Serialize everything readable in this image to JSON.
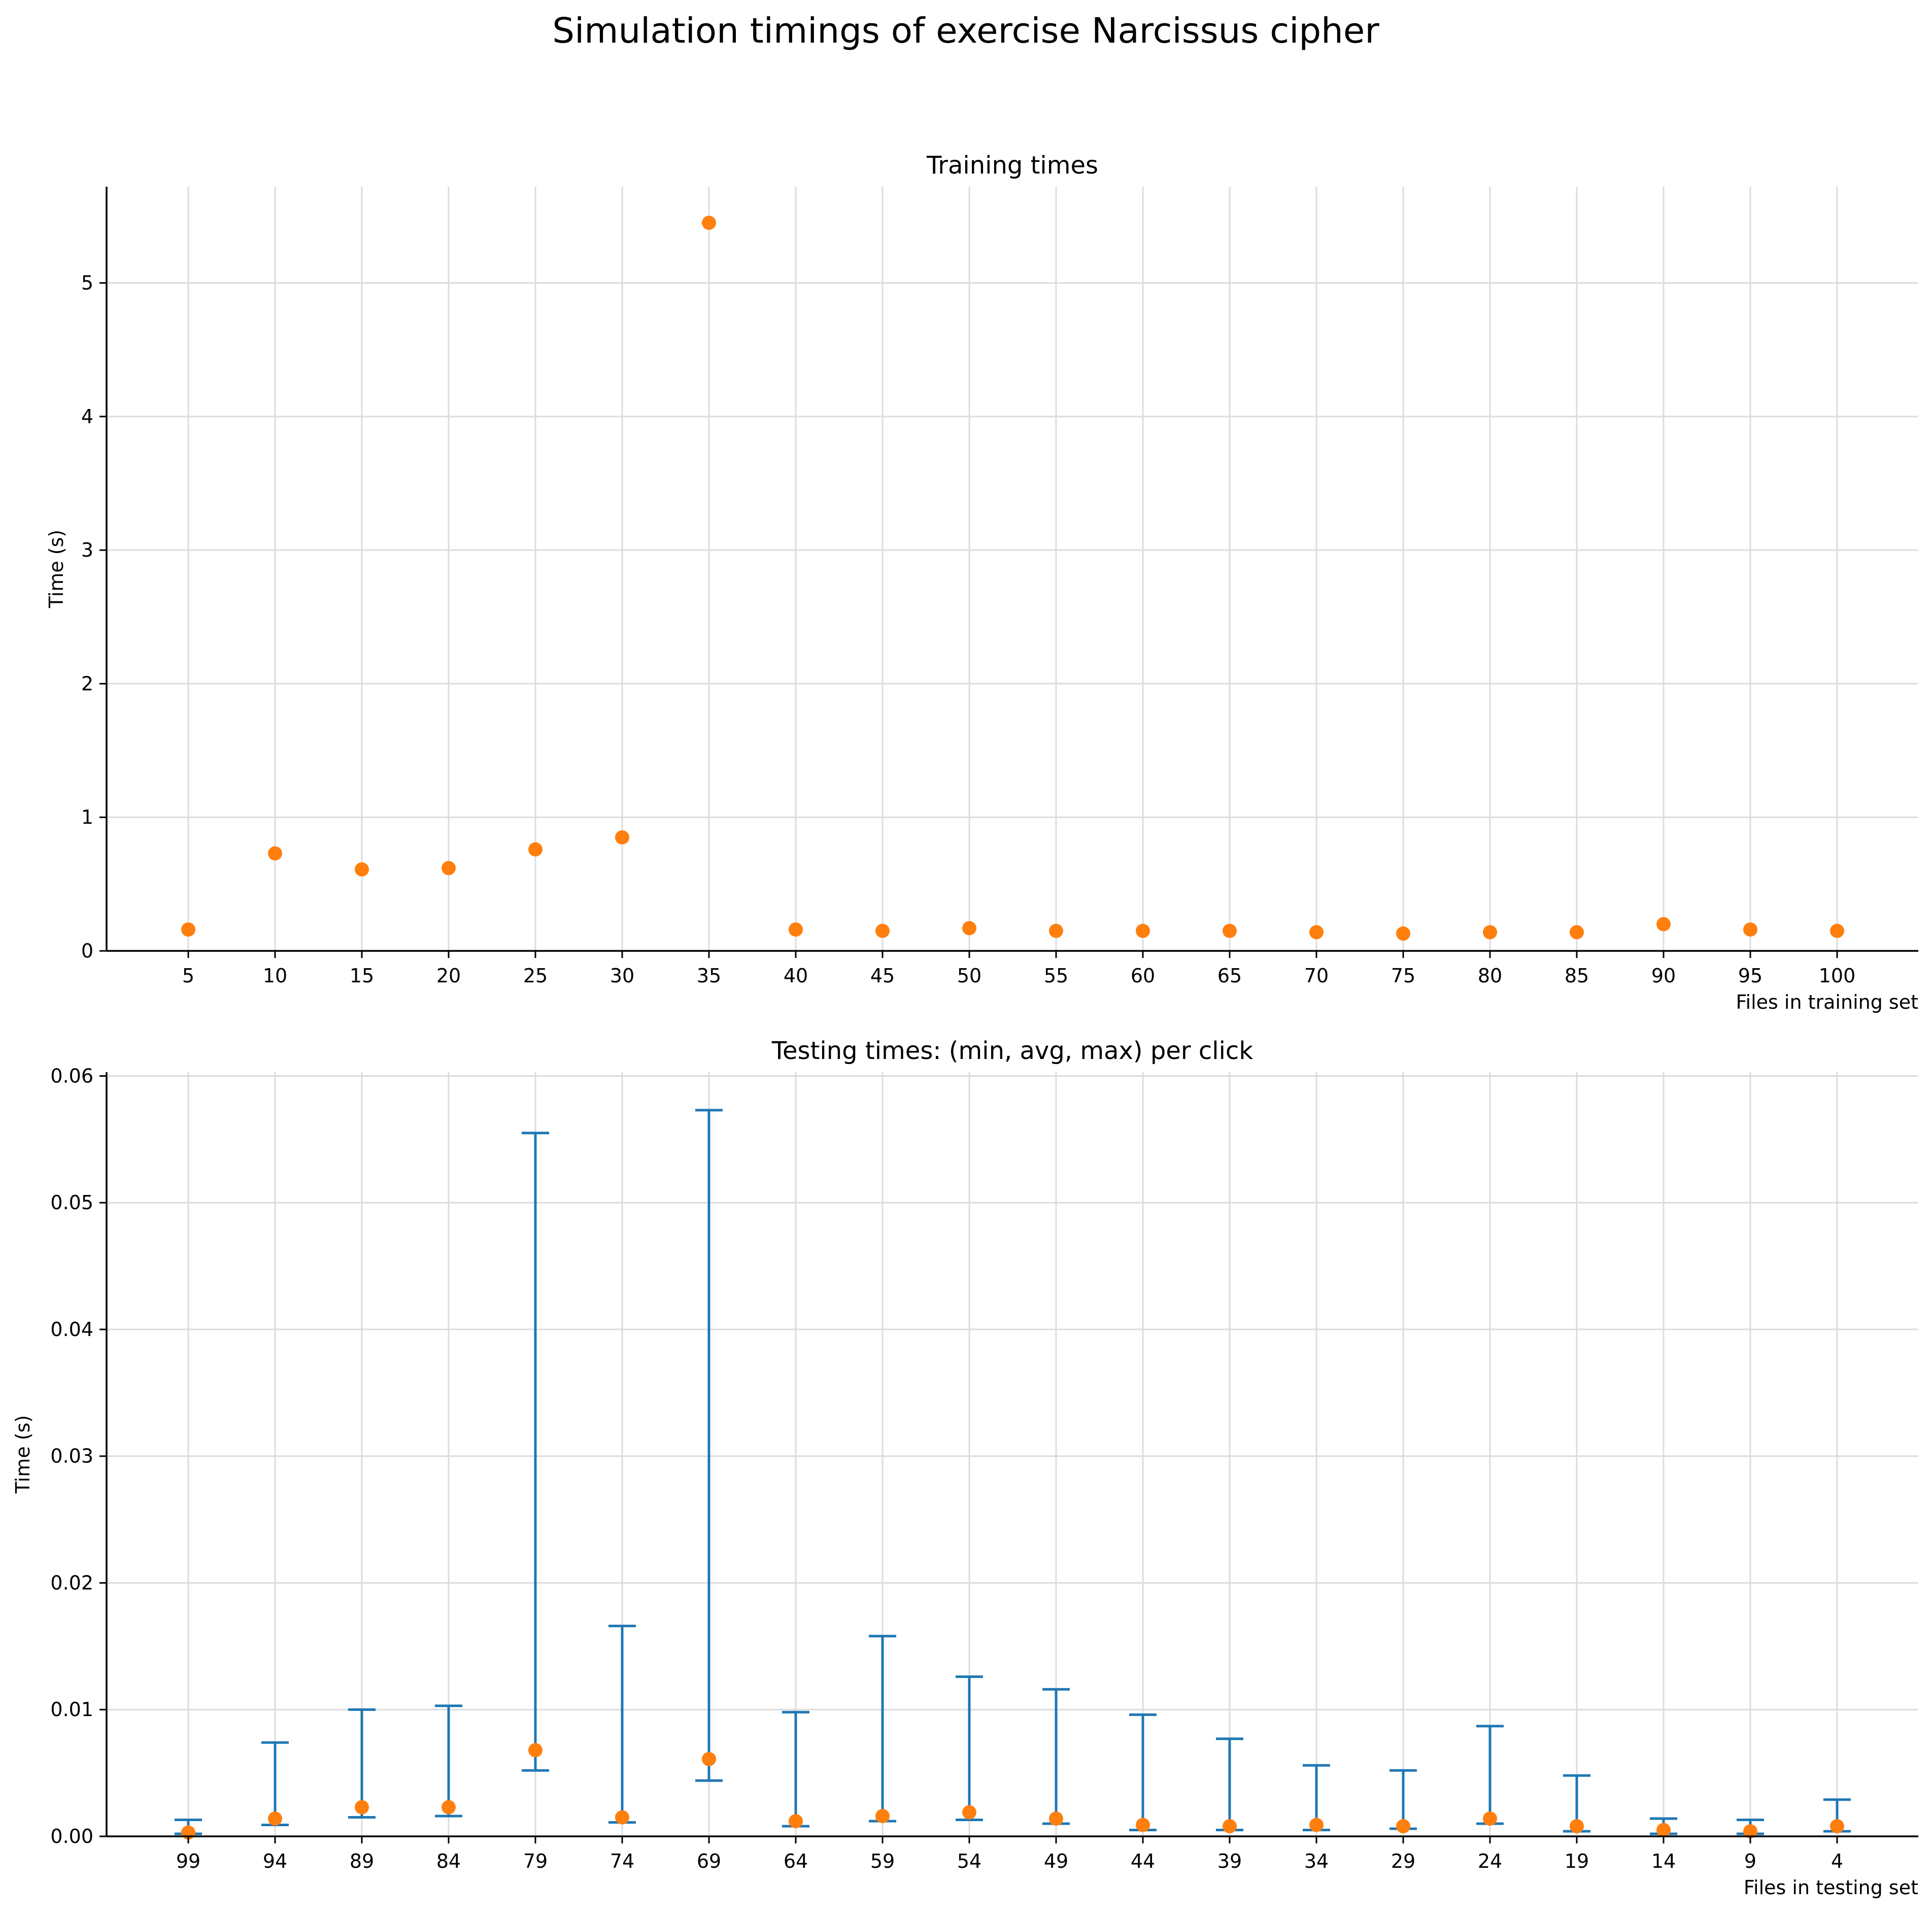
{
  "figure_title": "Simulation timings of exercise Narcissus cipher",
  "colors": {
    "marker": "#ff7f0e",
    "errorbar": "#1f77b4",
    "grid": "#dcdcdc"
  },
  "chart_data": [
    {
      "type": "scatter",
      "title": "Training times",
      "xlabel": "Files in training set",
      "ylabel": "Time (s)",
      "ylim": [
        0,
        5.72
      ],
      "yticks": [
        0,
        1,
        2,
        3,
        4,
        5
      ],
      "ytick_labels": [
        "0",
        "1",
        "2",
        "3",
        "4",
        "5"
      ],
      "grid": true,
      "categories": [
        "5",
        "10",
        "15",
        "20",
        "25",
        "30",
        "35",
        "40",
        "45",
        "50",
        "55",
        "60",
        "65",
        "70",
        "75",
        "80",
        "85",
        "90",
        "95",
        "100"
      ],
      "series": [
        {
          "values": [
            0.16,
            0.73,
            0.61,
            0.62,
            0.76,
            0.85,
            5.45,
            0.16,
            0.15,
            0.17,
            0.15,
            0.15,
            0.15,
            0.14,
            0.13,
            0.14,
            0.14,
            0.2,
            0.16,
            0.15
          ]
        }
      ]
    },
    {
      "type": "errorbar",
      "title": "Testing times: (min, avg, max) per click",
      "xlabel": "Files in testing set",
      "ylabel": "Time (s)",
      "ylim": [
        0,
        0.0603
      ],
      "yticks": [
        0,
        0.01,
        0.02,
        0.03,
        0.04,
        0.05,
        0.06
      ],
      "ytick_labels": [
        "0.00",
        "0.01",
        "0.02",
        "0.03",
        "0.04",
        "0.05",
        "0.06"
      ],
      "grid": true,
      "categories": [
        "99",
        "94",
        "89",
        "84",
        "79",
        "74",
        "69",
        "64",
        "59",
        "54",
        "49",
        "44",
        "39",
        "34",
        "29",
        "24",
        "19",
        "14",
        "9",
        "4"
      ],
      "series": [
        {
          "min": [
            0.0002,
            0.0009,
            0.0015,
            0.0016,
            0.0052,
            0.0011,
            0.0044,
            0.0008,
            0.0012,
            0.0013,
            0.001,
            0.0005,
            0.0005,
            0.0005,
            0.0006,
            0.001,
            0.0004,
            0.0002,
            0.0002,
            0.0004
          ],
          "avg": [
            0.0003,
            0.0014,
            0.0023,
            0.0023,
            0.0068,
            0.0015,
            0.0061,
            0.0012,
            0.0016,
            0.0019,
            0.0014,
            0.0009,
            0.0008,
            0.0009,
            0.0008,
            0.0014,
            0.0008,
            0.0005,
            0.0004,
            0.0008
          ],
          "max": [
            0.0013,
            0.0074,
            0.01,
            0.0103,
            0.0555,
            0.0166,
            0.0573,
            0.0098,
            0.0158,
            0.0126,
            0.0116,
            0.0096,
            0.0077,
            0.0056,
            0.0052,
            0.0087,
            0.0048,
            0.0014,
            0.0013,
            0.0029
          ]
        }
      ]
    }
  ]
}
